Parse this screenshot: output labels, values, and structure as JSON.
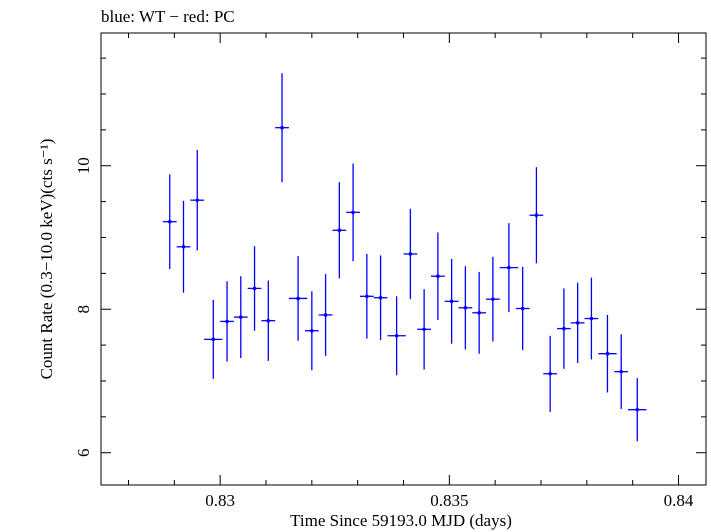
{
  "header": {
    "title": "blue: WT − red: PC"
  },
  "chart_data": {
    "type": "scatter",
    "title": "blue: WT − red: PC",
    "xlabel": "Time Since 59193.0 MJD (days)",
    "ylabel": "Count Rate (0.3−10.0 keV)(cts s⁻¹)",
    "xlim": [
      0.8274,
      0.8406
    ],
    "ylim": [
      5.55,
      11.85
    ],
    "x_ticks": [
      0.83,
      0.835,
      0.84
    ],
    "x_tick_labels": [
      "0.83",
      "0.835",
      "0.84"
    ],
    "y_ticks": [
      6,
      8,
      10
    ],
    "y_tick_labels": [
      "6",
      "8",
      "10"
    ],
    "grid": false,
    "series": [
      {
        "color": "#0000ff",
        "points": [
          {
            "x": 0.8289,
            "y": 9.22,
            "xerr": 0.00015,
            "yerr": 0.66
          },
          {
            "x": 0.8292,
            "y": 8.87,
            "xerr": 0.00015,
            "yerr": 0.64
          },
          {
            "x": 0.8295,
            "y": 9.52,
            "xerr": 0.00015,
            "yerr": 0.7
          },
          {
            "x": 0.82985,
            "y": 7.58,
            "xerr": 0.0002,
            "yerr": 0.55
          },
          {
            "x": 0.83015,
            "y": 7.83,
            "xerr": 0.00015,
            "yerr": 0.56
          },
          {
            "x": 0.83045,
            "y": 7.89,
            "xerr": 0.00015,
            "yerr": 0.57
          },
          {
            "x": 0.83075,
            "y": 8.29,
            "xerr": 0.00015,
            "yerr": 0.59
          },
          {
            "x": 0.83105,
            "y": 7.84,
            "xerr": 0.00015,
            "yerr": 0.56
          },
          {
            "x": 0.83135,
            "y": 10.53,
            "xerr": 0.00015,
            "yerr": 0.76
          },
          {
            "x": 0.8317,
            "y": 8.15,
            "xerr": 0.0002,
            "yerr": 0.59
          },
          {
            "x": 0.832,
            "y": 7.7,
            "xerr": 0.00015,
            "yerr": 0.55
          },
          {
            "x": 0.8323,
            "y": 7.92,
            "xerr": 0.00015,
            "yerr": 0.57
          },
          {
            "x": 0.8326,
            "y": 9.1,
            "xerr": 0.00015,
            "yerr": 0.67
          },
          {
            "x": 0.8329,
            "y": 9.35,
            "xerr": 0.00015,
            "yerr": 0.68
          },
          {
            "x": 0.8332,
            "y": 8.18,
            "xerr": 0.00015,
            "yerr": 0.59
          },
          {
            "x": 0.8335,
            "y": 8.16,
            "xerr": 0.00015,
            "yerr": 0.59
          },
          {
            "x": 0.83385,
            "y": 7.63,
            "xerr": 0.0002,
            "yerr": 0.55
          },
          {
            "x": 0.83415,
            "y": 8.77,
            "xerr": 0.00015,
            "yerr": 0.63
          },
          {
            "x": 0.83445,
            "y": 7.72,
            "xerr": 0.00015,
            "yerr": 0.56
          },
          {
            "x": 0.83475,
            "y": 8.46,
            "xerr": 0.00015,
            "yerr": 0.61
          },
          {
            "x": 0.83505,
            "y": 8.11,
            "xerr": 0.00015,
            "yerr": 0.59
          },
          {
            "x": 0.83535,
            "y": 8.02,
            "xerr": 0.00015,
            "yerr": 0.58
          },
          {
            "x": 0.83565,
            "y": 7.95,
            "xerr": 0.00015,
            "yerr": 0.57
          },
          {
            "x": 0.83595,
            "y": 8.14,
            "xerr": 0.00015,
            "yerr": 0.59
          },
          {
            "x": 0.8363,
            "y": 8.58,
            "xerr": 0.0002,
            "yerr": 0.62
          },
          {
            "x": 0.8366,
            "y": 8.01,
            "xerr": 0.00015,
            "yerr": 0.58
          },
          {
            "x": 0.8369,
            "y": 9.31,
            "xerr": 0.00015,
            "yerr": 0.67
          },
          {
            "x": 0.8372,
            "y": 7.1,
            "xerr": 0.00015,
            "yerr": 0.53
          },
          {
            "x": 0.8375,
            "y": 7.73,
            "xerr": 0.00015,
            "yerr": 0.56
          },
          {
            "x": 0.8378,
            "y": 7.81,
            "xerr": 0.00015,
            "yerr": 0.56
          },
          {
            "x": 0.8381,
            "y": 7.87,
            "xerr": 0.00015,
            "yerr": 0.57
          },
          {
            "x": 0.83845,
            "y": 7.38,
            "xerr": 0.0002,
            "yerr": 0.54
          },
          {
            "x": 0.83875,
            "y": 7.13,
            "xerr": 0.00015,
            "yerr": 0.52
          },
          {
            "x": 0.8391,
            "y": 6.6,
            "xerr": 0.0002,
            "yerr": 0.44
          }
        ]
      }
    ]
  }
}
